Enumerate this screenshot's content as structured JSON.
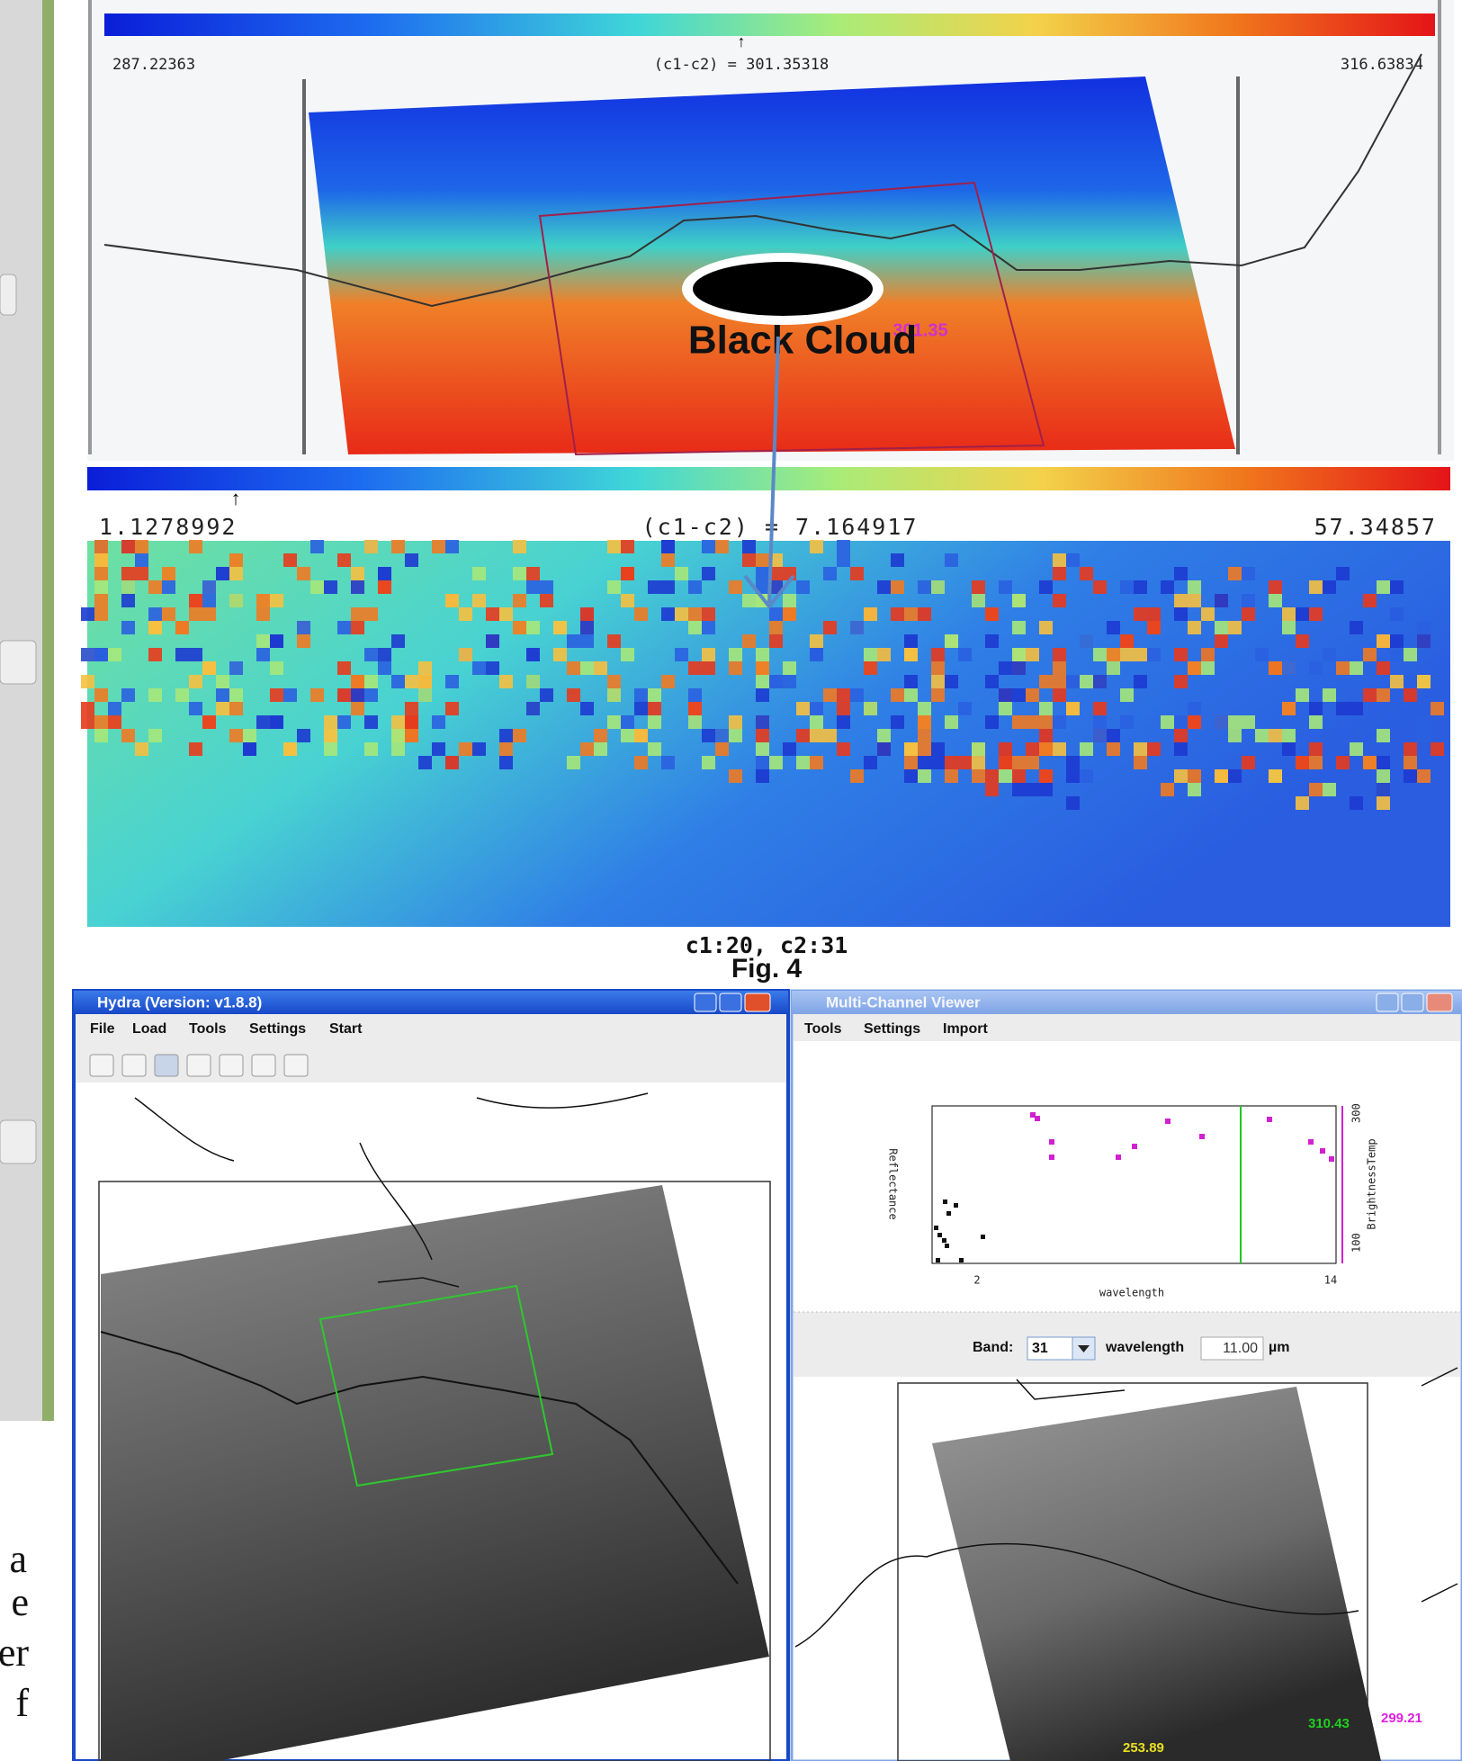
{
  "sidebar": {
    "text_fragments": [
      "a",
      "e",
      "er",
      "f"
    ]
  },
  "figure": {
    "top_panel": {
      "min_label": "287.22363",
      "center_label": "(c1-c2) = 301.35318",
      "max_label": "316.63834",
      "annotation": "Black Cloud",
      "probe_value": "301.35"
    },
    "bottom_panel": {
      "min_label": "1.1278992",
      "center_label": "(c1-c2) = 7.164917",
      "max_label": "57.34857",
      "channels": "c1:20, c2:31"
    },
    "caption": "Fig. 4"
  },
  "hydra_window": {
    "title": "Hydra  (Version: v1.8.8)",
    "menu": [
      "File",
      "Load",
      "Tools",
      "Settings",
      "Start"
    ]
  },
  "multi_channel_viewer": {
    "title": "Multi-Channel Viewer",
    "menu": [
      "Tools",
      "Settings",
      "Import"
    ],
    "plot": {
      "y_label": "Reflectance",
      "y2_label": "BrightnessTemp",
      "x_label": "wavelength",
      "x_ticks": [
        "2",
        "14"
      ],
      "y2_ticks": [
        "100",
        "300"
      ]
    },
    "band_label": "Band:",
    "band_value": "31",
    "wavelength_label": "wavelength",
    "wavelength_value": "11.00",
    "unit": "µm",
    "readouts": [
      "310.43",
      "299.21",
      "253.89"
    ]
  }
}
